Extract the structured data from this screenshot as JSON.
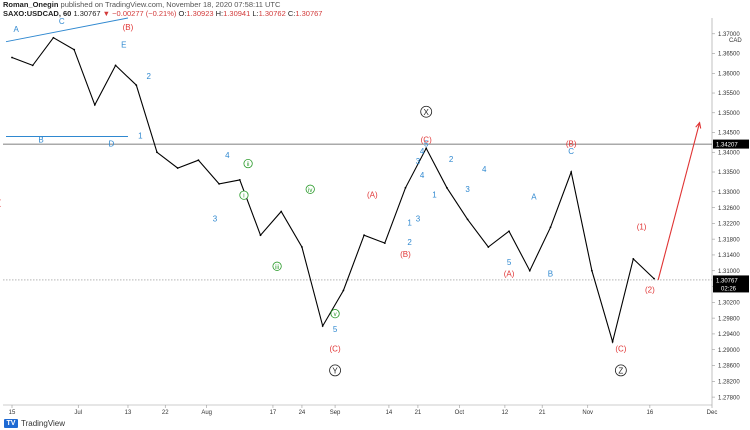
{
  "header": {
    "author": "Roman_Onegin",
    "published": "published on TradingView.com, November 18, 2020 07:58:11 UTC",
    "symbol": "SAXO:USDCAD, 60",
    "price": "1.30767",
    "change": "▼ −0.00277 (−0.21%)",
    "o_label": "O:",
    "o_value": "1.30923",
    "h_label": "H:",
    "h_value": "1.30941",
    "l_label": "L:",
    "l_value": "1.30762",
    "c_label": "C:",
    "c_value": "1.30767"
  },
  "footer": {
    "logo_text": "TradingView"
  },
  "colors": {
    "candles": "#000000",
    "blue_wave": "#2f88d0",
    "red_wave": "#e03434",
    "green_wave": "#2a9a2a",
    "black_wave": "#222222",
    "level_line": "#555555",
    "price_tag": "#000000"
  },
  "chart_data": {
    "type": "line",
    "series": [
      {
        "x": [
          "Jun 15",
          "Jun 20",
          "Jun 25",
          "Jun 30",
          "Jul 5",
          "Jul 10",
          "Jul 15",
          "Jul 20",
          "Jul 25",
          "Jul 30",
          "Aug 4",
          "Aug 9",
          "Aug 14",
          "Aug 19",
          "Aug 24",
          "Aug 29",
          "Sep 3",
          "Sep 8",
          "Sep 13",
          "Sep 18",
          "Sep 23",
          "Sep 28",
          "Oct 3",
          "Oct 8",
          "Oct 13",
          "Oct 18",
          "Oct 23",
          "Oct 28",
          "Nov 2",
          "Nov 7",
          "Nov 12",
          "Nov 17"
        ],
        "values": [
          1.364,
          1.362,
          1.369,
          1.366,
          1.352,
          1.362,
          1.357,
          1.34,
          1.336,
          1.338,
          1.332,
          1.333,
          1.319,
          1.325,
          1.316,
          1.296,
          1.305,
          1.319,
          1.317,
          1.331,
          1.341,
          1.331,
          1.323,
          1.316,
          1.32,
          1.31,
          1.321,
          1.335,
          1.31,
          1.292,
          1.313,
          1.308
        ]
      }
    ],
    "x_ticks": [
      "15",
      "Jul",
      "13",
      "22",
      "Aug",
      "17",
      "24",
      "Sep",
      "14",
      "21",
      "Oct",
      "12",
      "21",
      "Nov",
      "16",
      "Dec"
    ],
    "y_ticks": [
      "1.37000",
      "1.36500",
      "1.36000",
      "1.35500",
      "1.35000",
      "1.34500",
      "1.34000",
      "1.33500",
      "1.33000",
      "1.32600",
      "1.32200",
      "1.31800",
      "1.31400",
      "1.31000",
      "1.30600",
      "1.30200",
      "1.29800",
      "1.29400",
      "1.29000",
      "1.28600",
      "1.28200",
      "1.27800"
    ],
    "y_currency": "CAD",
    "ylim": [
      1.276,
      1.374
    ],
    "level_line": {
      "value": 1.34207,
      "label": "1.34207"
    },
    "current_price": {
      "value": 1.30767,
      "label": "1.30767",
      "countdown": "02:26"
    },
    "annotations": {
      "blue": [
        {
          "text": "A",
          "x": "Jun 16",
          "y": 1.3705
        },
        {
          "text": "C",
          "x": "Jun 27",
          "y": 1.3725
        },
        {
          "text": "B",
          "x": "Jun 22",
          "y": 1.3425
        },
        {
          "text": "D",
          "x": "Jul 9",
          "y": 1.3415
        },
        {
          "text": "E",
          "x": "Jul 12",
          "y": 1.3665
        },
        {
          "text": "1",
          "x": "Jul 16",
          "y": 1.3435
        },
        {
          "text": "2",
          "x": "Jul 18",
          "y": 1.3585
        },
        {
          "text": "3",
          "x": "Aug 3",
          "y": 1.3225
        },
        {
          "text": "4",
          "x": "Aug 6",
          "y": 1.3385
        },
        {
          "text": "5",
          "x": "Sep 1",
          "y": 1.2945
        },
        {
          "text": "1",
          "x": "Sep 19",
          "y": 1.3215
        },
        {
          "text": "2",
          "x": "Sep 19",
          "y": 1.3165
        },
        {
          "text": "3",
          "x": "Sep 21",
          "y": 1.3225
        },
        {
          "text": "4",
          "x": "Sep 22",
          "y": 1.3395
        },
        {
          "text": "5",
          "x": "Sep 23",
          "y": 1.3415
        },
        {
          "text": "3",
          "x": "Sep 21",
          "y": 1.337
        },
        {
          "text": "4",
          "x": "Sep 22",
          "y": 1.3335
        },
        {
          "text": "1",
          "x": "Sep 25",
          "y": 1.3285
        },
        {
          "text": "2",
          "x": "Sep 29",
          "y": 1.3375
        },
        {
          "text": "3",
          "x": "Oct 3",
          "y": 1.33
        },
        {
          "text": "4",
          "x": "Oct 7",
          "y": 1.335
        },
        {
          "text": "5",
          "x": "Oct 13",
          "y": 1.3115
        },
        {
          "text": "A",
          "x": "Oct 19",
          "y": 1.328
        },
        {
          "text": "B",
          "x": "Oct 23",
          "y": 1.3085
        },
        {
          "text": "C",
          "x": "Oct 28",
          "y": 1.3395
        }
      ],
      "red": [
        {
          "text": "(B)",
          "x": "Jul 13",
          "y": 1.371
        },
        {
          "text": "(",
          "x": "Jun 12",
          "y": 1.3265
        },
        {
          "text": "(A)",
          "x": "Sep 10",
          "y": 1.3285
        },
        {
          "text": "(B)",
          "x": "Sep 18",
          "y": 1.3135
        },
        {
          "text": "(C)",
          "x": "Sep 1",
          "y": 1.2895
        },
        {
          "text": "(C)",
          "x": "Sep 23",
          "y": 1.3425
        },
        {
          "text": "(A)",
          "x": "Oct 13",
          "y": 1.3085
        },
        {
          "text": "(B)",
          "x": "Oct 28",
          "y": 1.3415
        },
        {
          "text": "(C)",
          "x": "Nov 9",
          "y": 1.2895
        },
        {
          "text": "(1)",
          "x": "Nov 14",
          "y": 1.3205
        },
        {
          "text": "(2)",
          "x": "Nov 16",
          "y": 1.3045
        }
      ],
      "green": [
        {
          "text": "i",
          "x": "Aug 10",
          "y": 1.3285
        },
        {
          "text": "ii",
          "x": "Aug 11",
          "y": 1.3365
        },
        {
          "text": "iii",
          "x": "Aug 18",
          "y": 1.3105
        },
        {
          "text": "iv",
          "x": "Aug 26",
          "y": 1.33
        },
        {
          "text": "v",
          "x": "Sep 1",
          "y": 1.2985
        }
      ],
      "black": [
        {
          "text": "X",
          "x": "Sep 23",
          "y": 1.3495
        },
        {
          "text": "Y",
          "x": "Sep 1",
          "y": 1.284
        },
        {
          "text": "Z",
          "x": "Nov 9",
          "y": 1.284
        }
      ]
    }
  }
}
